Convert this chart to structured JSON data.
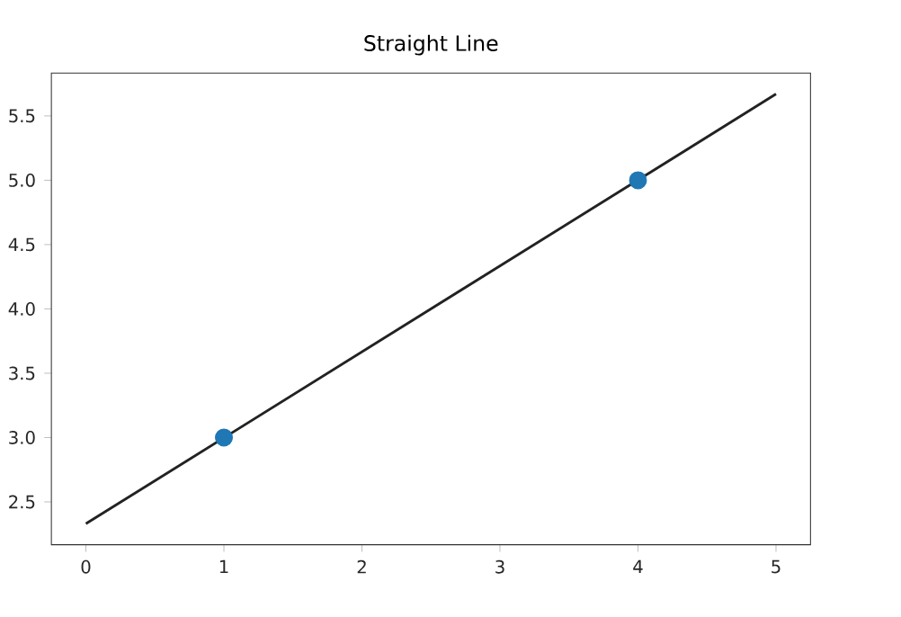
{
  "chart_data": {
    "type": "scatter",
    "title": "Straight Line",
    "series": [
      {
        "type": "line",
        "marker": "none",
        "color": "#222222",
        "x": [
          0,
          5
        ],
        "values": [
          2.33,
          5.67
        ]
      },
      {
        "marker": "circle",
        "color": "#1f77b4",
        "x": [
          1,
          4
        ],
        "values": [
          3,
          5
        ]
      }
    ],
    "xlim": [
      -0.25,
      5.25
    ],
    "ylim": [
      2.167,
      5.833
    ],
    "xticks": [
      0,
      1,
      2,
      3,
      4,
      5
    ],
    "yticks": [
      2.5,
      {
        "value": 3.0,
        "label": "3.0"
      },
      3.5,
      {
        "value": 4.0,
        "label": "4.0"
      },
      4.5,
      {
        "value": 5.0,
        "label": "5.0"
      },
      5.5
    ]
  }
}
